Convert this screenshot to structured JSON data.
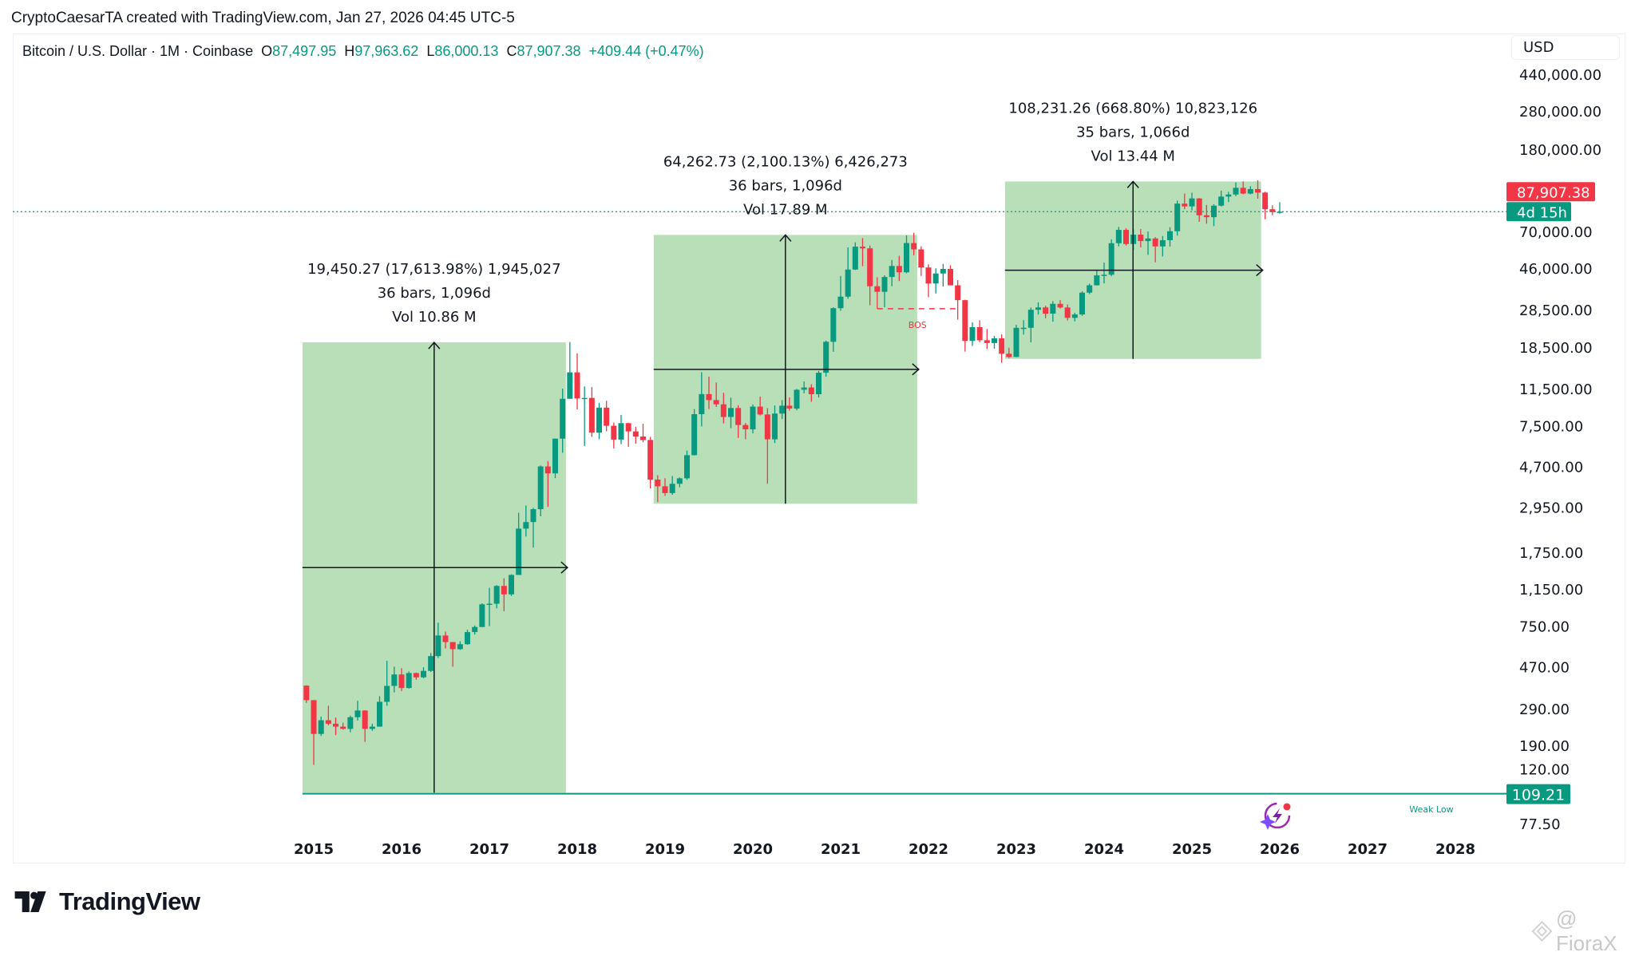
{
  "header": {
    "credit": "CryptoCaesarTA created with TradingView.com, Jan 27, 2026 04:45 UTC-5"
  },
  "legend": {
    "symbol": "Bitcoin / U.S. Dollar · 1M · Coinbase",
    "o_label": "O",
    "o": "87,497.95",
    "h_label": "H",
    "h": "97,963.62",
    "l_label": "L",
    "l": "86,000.13",
    "c_label": "C",
    "c": "87,907.38",
    "change": "+409.44 (+0.47%)"
  },
  "currency_button": "USD",
  "footer": {
    "logo_text": "TradingView",
    "watermark": "@ FioraX"
  },
  "colors": {
    "up": "#089981",
    "down": "#f23645",
    "range_fill": "#b9dfb8",
    "accent": "#089981"
  },
  "chart_data": {
    "type": "candlestick",
    "interval": "1M",
    "y_scale": "log",
    "x_ticks": [
      "2015",
      "2016",
      "2017",
      "2018",
      "2019",
      "2020",
      "2021",
      "2022",
      "2023",
      "2024",
      "2025",
      "2026",
      "2027",
      "2028"
    ],
    "y_ticks": [
      "440,000.00",
      "280,000.00",
      "180,000.00",
      "70,000.00",
      "46,000.00",
      "28,500.00",
      "18,500.00",
      "11,500.00",
      "7,500.00",
      "4,700.00",
      "2,950.00",
      "1,750.00",
      "1,150.00",
      "750.00",
      "470.00",
      "290.00",
      "190.00",
      "120.00",
      "77.50"
    ],
    "first_month": "2014-12",
    "ohlc": [
      [
        378,
        380,
        310,
        320
      ],
      [
        320,
        320,
        152,
        217
      ],
      [
        217,
        265,
        212,
        254
      ],
      [
        254,
        300,
        240,
        244
      ],
      [
        244,
        262,
        214,
        236
      ],
      [
        236,
        247,
        228,
        230
      ],
      [
        230,
        268,
        221,
        263
      ],
      [
        263,
        318,
        253,
        284
      ],
      [
        284,
        285,
        198,
        230
      ],
      [
        230,
        244,
        225,
        236
      ],
      [
        236,
        335,
        236,
        314
      ],
      [
        314,
        503,
        300,
        377
      ],
      [
        377,
        470,
        350,
        430
      ],
      [
        430,
        462,
        355,
        368
      ],
      [
        368,
        445,
        365,
        437
      ],
      [
        437,
        440,
        405,
        416
      ],
      [
        416,
        467,
        412,
        448
      ],
      [
        448,
        550,
        443,
        531
      ],
      [
        531,
        780,
        520,
        673
      ],
      [
        673,
        704,
        580,
        624
      ],
      [
        624,
        625,
        470,
        575
      ],
      [
        575,
        630,
        570,
        609
      ],
      [
        609,
        720,
        605,
        700
      ],
      [
        700,
        755,
        680,
        742
      ],
      [
        742,
        975,
        740,
        963
      ],
      [
        963,
        1165,
        750,
        970
      ],
      [
        970,
        1200,
        920,
        1190
      ],
      [
        1190,
        1300,
        890,
        1080
      ],
      [
        1080,
        1360,
        1060,
        1350
      ],
      [
        1350,
        2760,
        1350,
        2300
      ],
      [
        2300,
        3000,
        2100,
        2480
      ],
      [
        2480,
        2920,
        1850,
        2875
      ],
      [
        2875,
        4750,
        2650,
        4700
      ],
      [
        4700,
        5000,
        2950,
        4340
      ],
      [
        4340,
        6470,
        4110,
        6470
      ],
      [
        6470,
        11500,
        5500,
        10230
      ],
      [
        10230,
        19660,
        10900,
        13860
      ],
      [
        13860,
        17250,
        9050,
        10270
      ],
      [
        10270,
        11790,
        5950,
        10330
      ],
      [
        10330,
        11700,
        6600,
        6930
      ],
      [
        6930,
        9770,
        6430,
        9240
      ],
      [
        9240,
        10000,
        7040,
        7500
      ],
      [
        7500,
        7780,
        5780,
        6400
      ],
      [
        6400,
        8500,
        6070,
        7730
      ],
      [
        7730,
        7760,
        5880,
        7030
      ],
      [
        7030,
        7410,
        6100,
        6630
      ],
      [
        6630,
        7680,
        6200,
        6370
      ],
      [
        6370,
        6600,
        3650,
        4040
      ],
      [
        4040,
        4250,
        3120,
        3740
      ],
      [
        3740,
        4100,
        3350,
        3460
      ],
      [
        3460,
        4210,
        3390,
        3850
      ],
      [
        3850,
        4140,
        3700,
        4100
      ],
      [
        4100,
        5640,
        4030,
        5350
      ],
      [
        5350,
        9090,
        5330,
        8570
      ],
      [
        8570,
        13880,
        7450,
        10800
      ],
      [
        10800,
        13200,
        9090,
        10080
      ],
      [
        10080,
        12330,
        9320,
        9600
      ],
      [
        9600,
        10960,
        7710,
        8300
      ],
      [
        8300,
        10370,
        7300,
        9200
      ],
      [
        9200,
        9510,
        6520,
        7570
      ],
      [
        7570,
        7750,
        6430,
        7200
      ],
      [
        7200,
        9580,
        6870,
        9350
      ],
      [
        9350,
        10500,
        8450,
        8540
      ],
      [
        8540,
        9190,
        3850,
        6420
      ],
      [
        6420,
        9470,
        6150,
        8630
      ],
      [
        8630,
        10070,
        8110,
        9450
      ],
      [
        9450,
        10390,
        8920,
        9140
      ],
      [
        9140,
        11450,
        8960,
        11350
      ],
      [
        11350,
        12480,
        10900,
        11650
      ],
      [
        11650,
        12090,
        9880,
        10780
      ],
      [
        10780,
        14100,
        10380,
        13800
      ],
      [
        13800,
        19950,
        13200,
        19700
      ],
      [
        19700,
        29300,
        17560,
        28990
      ],
      [
        28990,
        41950,
        28130,
        33100
      ],
      [
        33100,
        58350,
        32300,
        45200
      ],
      [
        45200,
        61780,
        44950,
        58800
      ],
      [
        58800,
        64900,
        47000,
        57700
      ],
      [
        57700,
        59600,
        30000,
        37300
      ],
      [
        37300,
        41330,
        28800,
        35000
      ],
      [
        35000,
        42300,
        29280,
        41500
      ],
      [
        41500,
        50500,
        37330,
        47100
      ],
      [
        47100,
        52950,
        39600,
        43800
      ],
      [
        43800,
        67000,
        43300,
        61300
      ],
      [
        61300,
        69000,
        53250,
        57000
      ],
      [
        57000,
        59100,
        42000,
        46300
      ],
      [
        46300,
        47990,
        32900,
        38500
      ],
      [
        38500,
        45800,
        34300,
        43200
      ],
      [
        43200,
        48200,
        37150,
        45500
      ],
      [
        45500,
        47450,
        37700,
        37700
      ],
      [
        37700,
        40000,
        25400,
        31800
      ],
      [
        31800,
        31950,
        17600,
        19900
      ],
      [
        19900,
        24650,
        18780,
        23300
      ],
      [
        23300,
        25200,
        19600,
        20050
      ],
      [
        20050,
        22800,
        18150,
        19420
      ],
      [
        19420,
        21080,
        18200,
        20500
      ],
      [
        20500,
        21450,
        15480,
        17170
      ],
      [
        17170,
        18400,
        16330,
        16550
      ],
      [
        16550,
        23950,
        16500,
        23130
      ],
      [
        23130,
        25250,
        21400,
        23140
      ],
      [
        23140,
        29200,
        19570,
        28470
      ],
      [
        28470,
        31000,
        26950,
        29250
      ],
      [
        29250,
        29820,
        25810,
        27220
      ],
      [
        27220,
        31430,
        24800,
        30470
      ],
      [
        30470,
        31800,
        28860,
        29230
      ],
      [
        29230,
        30200,
        25160,
        25940
      ],
      [
        25940,
        27480,
        24900,
        26970
      ],
      [
        26970,
        35200,
        26550,
        34650
      ],
      [
        34650,
        38420,
        34100,
        37720
      ],
      [
        37720,
        44700,
        37600,
        42280
      ],
      [
        42280,
        48970,
        38550,
        42580
      ],
      [
        42580,
        64000,
        41900,
        61180
      ],
      [
        61180,
        73800,
        59000,
        71330
      ],
      [
        71330,
        72750,
        59600,
        60640
      ],
      [
        60640,
        71950,
        56550,
        67530
      ],
      [
        67530,
        71950,
        58400,
        62700
      ],
      [
        62700,
        70000,
        53500,
        64620
      ],
      [
        64620,
        65600,
        49100,
        58970
      ],
      [
        58970,
        66500,
        52550,
        63330
      ],
      [
        63330,
        73600,
        58900,
        70220
      ],
      [
        70220,
        99800,
        66800,
        96450
      ],
      [
        96450,
        108350,
        90500,
        93430
      ],
      [
        93430,
        109350,
        89250,
        102400
      ],
      [
        102400,
        102750,
        78250,
        84350
      ],
      [
        84350,
        95000,
        76600,
        82550
      ],
      [
        82550,
        95750,
        74500,
        94200
      ],
      [
        94200,
        111900,
        93350,
        104600
      ],
      [
        104600,
        110500,
        98200,
        107100
      ],
      [
        107100,
        123200,
        105100,
        115700
      ],
      [
        115700,
        124450,
        107350,
        108200
      ],
      [
        108200,
        117900,
        107300,
        114000
      ],
      [
        114000,
        126200,
        102000,
        109500
      ],
      [
        109500,
        110600,
        80600,
        90400
      ],
      [
        90400,
        94600,
        84400,
        87500
      ],
      [
        87497.95,
        97963.62,
        86000.13,
        87907.38
      ]
    ],
    "last_price": "87,907.38",
    "last_price_value": 87907.38,
    "bar_countdown": "4d 15h",
    "date_ranges": [
      {
        "from": "2014-12",
        "to": "2017-12",
        "low": 110.43,
        "high": 19560.7,
        "lines": [
          "19,450.27 (17,613.98%) 1,945,027",
          "36 bars, 1,096d",
          "Vol 10.86 M"
        ]
      },
      {
        "from": "2018-12",
        "to": "2021-12",
        "low": 3060,
        "high": 67322,
        "lines": [
          "64,262.73 (2,100.13%) 6,426,273",
          "36 bars, 1,096d",
          "Vol 17.89 M"
        ]
      },
      {
        "from": "2022-12",
        "to": "2025-11",
        "low": 16183,
        "high": 124414,
        "lines": [
          "108,231.26 (668.80%) 10,823,126",
          "35 bars, 1,066d",
          "Vol 13.44 M"
        ]
      }
    ],
    "bos": {
      "label": "BOS",
      "price": 28800,
      "from": "2021-06",
      "to": "2022-05"
    },
    "weak_low": {
      "label": "Weak Low",
      "price": 109.21,
      "price_label": "109.21",
      "from": "2014-12"
    }
  }
}
